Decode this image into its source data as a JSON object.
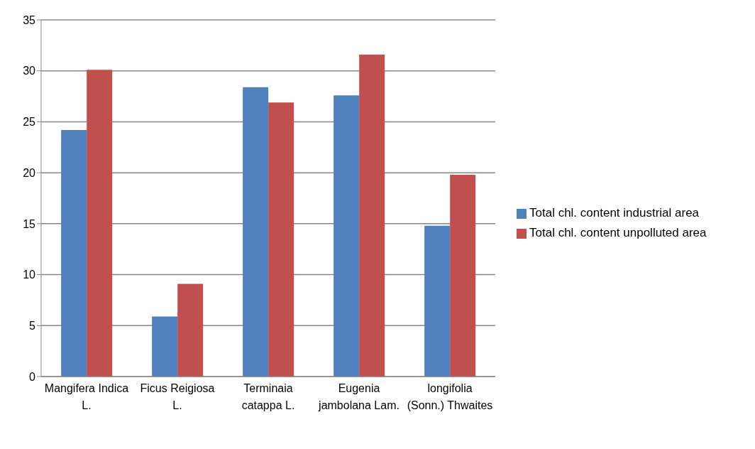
{
  "chart_data": {
    "type": "bar",
    "categories": [
      "Mangifera Indica L.",
      "Ficus Reigiosa L.",
      "Terminaia catappa L.",
      "Eugenia jambolana Lam.",
      "longifolia (Sonn.) Thwaites"
    ],
    "series": [
      {
        "name": "Total chl. content industrial area",
        "color": "#4f81bd",
        "values": [
          24.2,
          5.9,
          28.4,
          27.6,
          14.8
        ]
      },
      {
        "name": "Total chl. content unpolluted area",
        "color": "#c0504d",
        "values": [
          30.1,
          9.1,
          26.9,
          31.6,
          19.8
        ]
      }
    ],
    "ylim": [
      0,
      35
    ],
    "yticks": [
      0,
      5,
      10,
      15,
      20,
      25,
      30,
      35
    ],
    "grid": "y",
    "legend": "right"
  }
}
